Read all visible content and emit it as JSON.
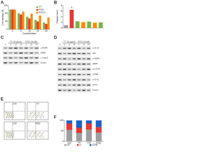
{
  "panels": {
    "A": {
      "label": "A",
      "y_label": "Cell viability (%)",
      "x_label": "Concentration",
      "categories": [
        "0",
        "5",
        "10",
        "20",
        "40"
      ],
      "series": [
        {
          "name": "TT",
          "color": "#7cb342",
          "values": [
            100,
            82,
            64,
            48,
            35
          ]
        },
        {
          "name": "PGG",
          "color": "#e53935",
          "values": [
            100,
            75,
            55,
            40,
            28
          ]
        },
        {
          "name": "EGCG",
          "color": "#fb8c00",
          "values": [
            100,
            90,
            80,
            70,
            60
          ]
        }
      ],
      "ylim": [
        0,
        120
      ],
      "yticks": [
        0,
        40,
        80,
        120
      ]
    },
    "B": {
      "label": "B",
      "y_label": "Relative level",
      "values": [
        1,
        6.5,
        2.4,
        2.1,
        2.3,
        1.9,
        2.0
      ],
      "colors": [
        "#9e9e9e",
        "#e53935",
        "#7cb342",
        "#fb8c00",
        "#7cb342",
        "#fb8c00",
        "#7cb342"
      ],
      "ylim": [
        0,
        8
      ],
      "yticks": [
        0,
        2,
        4,
        6,
        8
      ],
      "annotation": "*"
    },
    "C": {
      "label": "C",
      "groups": [
        "TT (10 μg/ml)",
        "PGG (10 μM)"
      ],
      "lanes": [
        "0",
        "6",
        "12",
        "24",
        "6",
        "12",
        "24"
      ],
      "rows": [
        "c-PARP",
        "PARP",
        "c-Casp3",
        "β-actin"
      ]
    },
    "D": {
      "label": "D",
      "groups": [
        "TT (10 μg/ml)",
        "PGG (10 μM)"
      ],
      "lanes": [
        "0",
        "6",
        "12",
        "24",
        "6",
        "12",
        "24"
      ],
      "rows": [
        "LC3-II/I",
        "p62",
        "p-AMPK",
        "AMPK",
        "p-mTOR",
        "mTOR",
        "p-ULK1",
        "ULK1",
        "β-actin"
      ]
    },
    "E": {
      "label": "E",
      "plots": [
        "Ctrl",
        "TT",
        "Ctrl",
        "PGG"
      ]
    },
    "F": {
      "label": "F",
      "categories": [
        "Ctrl",
        "TT",
        "Ctrl",
        "PGG"
      ],
      "series": [
        {
          "name": "G1",
          "color": "#9e9e9e",
          "values": [
            55,
            40,
            56,
            42
          ]
        },
        {
          "name": "S",
          "color": "#e53935",
          "values": [
            30,
            25,
            29,
            26
          ]
        },
        {
          "name": "G2/M",
          "color": "#1e63c7",
          "values": [
            15,
            35,
            15,
            32
          ]
        }
      ],
      "ylim": [
        0,
        100
      ],
      "yticks": [
        0,
        50,
        100
      ]
    }
  }
}
